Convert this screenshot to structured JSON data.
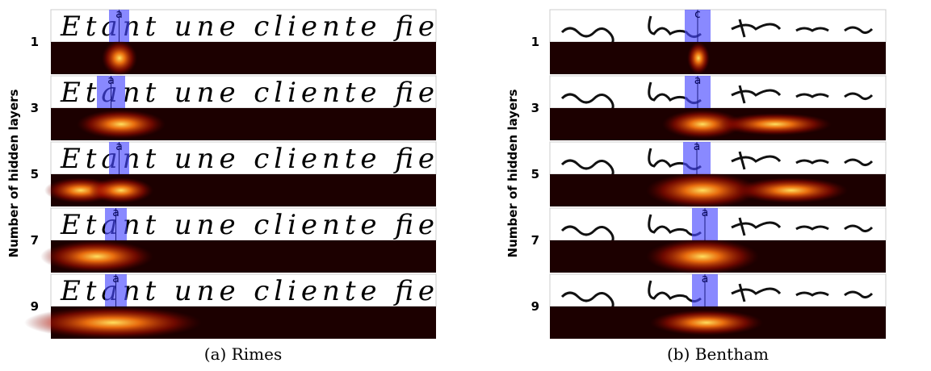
{
  "panels": [
    {
      "caption": "(a) Rimes",
      "y_axis_label": "Number of hidden layers",
      "line_text": "Etant une cliente fie",
      "rows": [
        {
          "label": "1",
          "char": "a"
        },
        {
          "label": "3",
          "char": "a"
        },
        {
          "label": "5",
          "char": "a"
        },
        {
          "label": "7",
          "char": "a"
        },
        {
          "label": "9",
          "char": "a"
        }
      ]
    },
    {
      "caption": "(b) Bentham",
      "y_axis_label": "Number of hidden layers",
      "rows": [
        {
          "label": "1",
          "char": "c"
        },
        {
          "label": "3",
          "char": "a"
        },
        {
          "label": "5",
          "char": "a"
        },
        {
          "label": "7",
          "char": "a"
        },
        {
          "label": "9",
          "char": "a"
        }
      ]
    }
  ]
}
